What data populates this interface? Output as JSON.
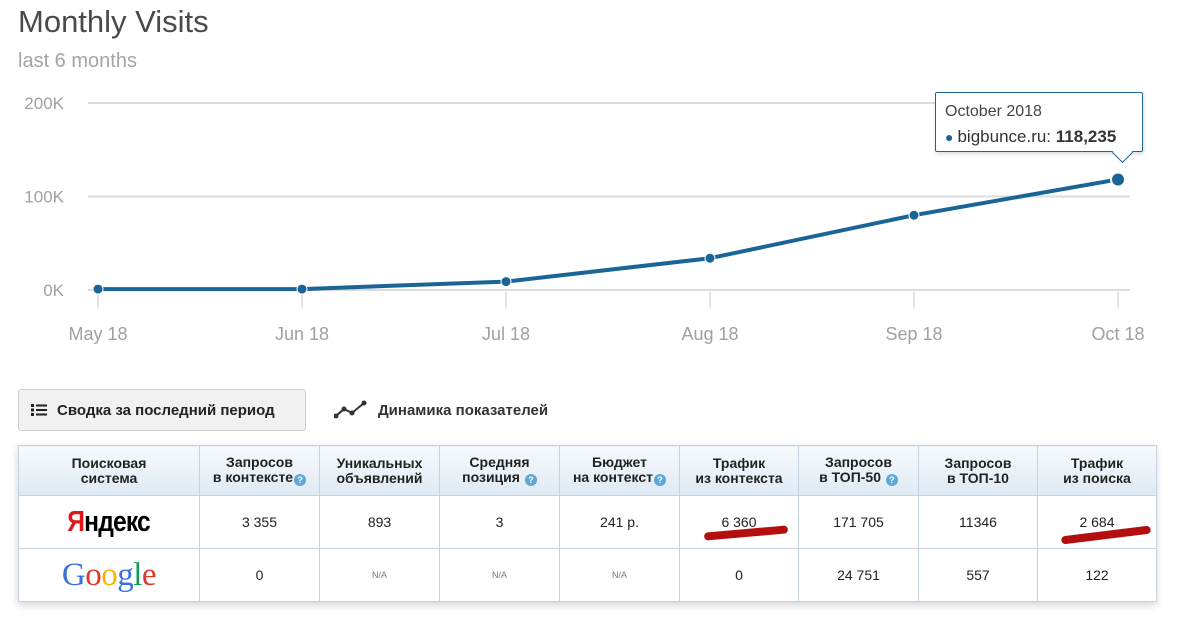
{
  "chart_data": {
    "type": "line",
    "title": "Monthly Visits",
    "subtitle": "last 6 months",
    "categories": [
      "May 18",
      "Jun 18",
      "Jul 18",
      "Aug 18",
      "Sep 18",
      "Oct 18"
    ],
    "series": [
      {
        "name": "bigbunce.ru",
        "values": [
          1000,
          1000,
          9000,
          34000,
          80000,
          118235
        ]
      }
    ],
    "y_ticks": [
      "0K",
      "100K",
      "200K"
    ],
    "ylim": [
      0,
      200000
    ],
    "grid": true,
    "line_color": "#1a6496",
    "tooltip": {
      "date": "October 2018",
      "series": "bigbunce.ru:",
      "value": "118,235"
    }
  },
  "tabs": {
    "summary": "Сводка за последний период",
    "dynamics": "Динамика показателей"
  },
  "table": {
    "headers": [
      [
        "Поисковая",
        "система"
      ],
      [
        "Запросов",
        "в контексте"
      ],
      [
        "Уникальных",
        "объявлений"
      ],
      [
        "Средняя",
        "позиция"
      ],
      [
        "Бюджет",
        "на контекст"
      ],
      [
        "Трафик",
        "из контекста"
      ],
      [
        "Запросов",
        "в ТОП-50"
      ],
      [
        "Запросов",
        "в ТОП-10"
      ],
      [
        "Трафик",
        "из поиска"
      ]
    ],
    "help_icon": "?",
    "rows": [
      {
        "engine": [
          "Я",
          "ндекс"
        ],
        "cells": [
          "3 355",
          "893",
          "3",
          "241 р.",
          "6 360",
          "171 705",
          "11346",
          "2 684"
        ]
      },
      {
        "engine": "Google",
        "cells": [
          "0",
          "N/A",
          "N/A",
          "N/A",
          "0",
          "24 751",
          "557",
          "122"
        ]
      }
    ]
  },
  "colors": {
    "accent": "#1a6496",
    "highlight_mark": "#b30f0f",
    "google": [
      "#3c6fe0",
      "#e0362b",
      "#f4b400",
      "#3c6fe0",
      "#0f9d58",
      "#e0362b"
    ]
  }
}
